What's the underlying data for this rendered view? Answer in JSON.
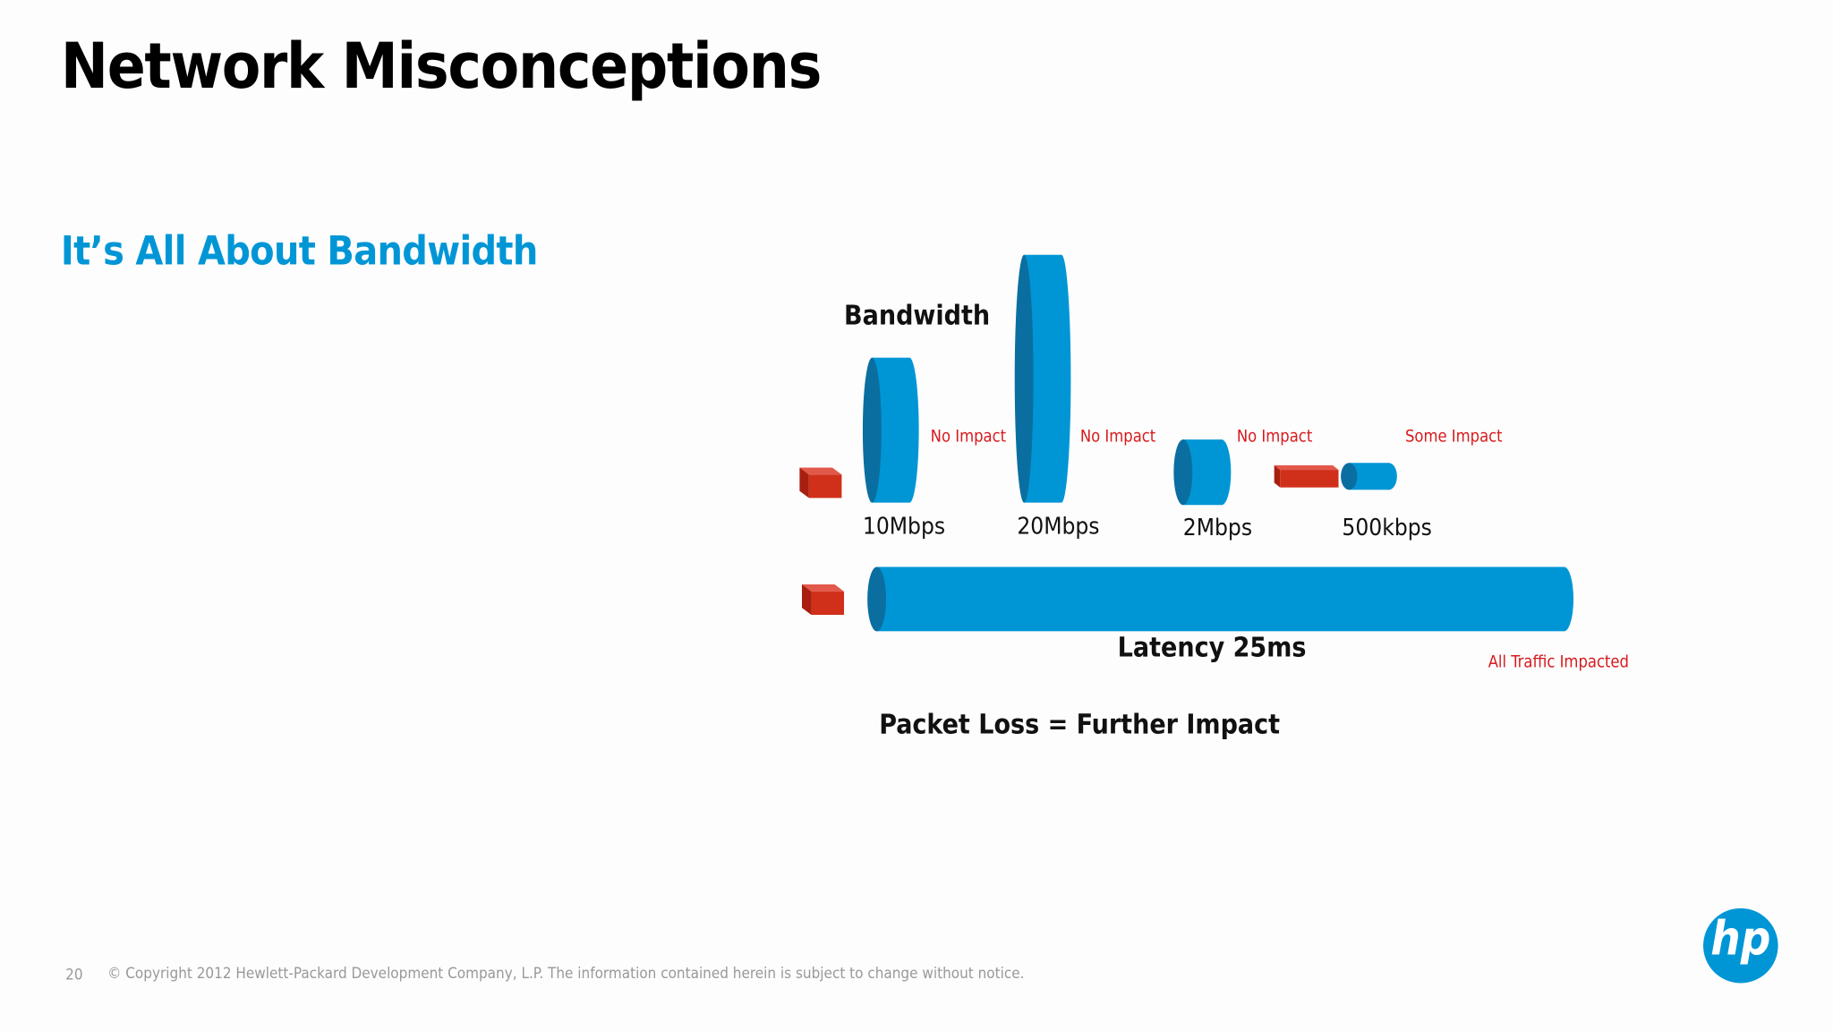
{
  "header": {
    "title": "Network Misconceptions",
    "subtitle": "It’s All About Bandwidth"
  },
  "diagram": {
    "bandwidth_label": "Bandwidth",
    "pipes": [
      {
        "label": "10Mbps",
        "impact": "No Impact"
      },
      {
        "label": "20Mbps",
        "impact": "No Impact"
      },
      {
        "label": "2Mbps",
        "impact": "No Impact"
      },
      {
        "label": "500kbps",
        "impact": "Some Impact"
      }
    ],
    "latency": {
      "label": "Latency 25ms",
      "impact": "All Traffic Impacted"
    },
    "packet_loss": "Packet Loss = Further Impact"
  },
  "footer": {
    "page": "20",
    "copyright": "© Copyright 2012 Hewlett-Packard Development Company, L.P.  The information contained herein is subject to change without notice."
  },
  "logo": "hp"
}
